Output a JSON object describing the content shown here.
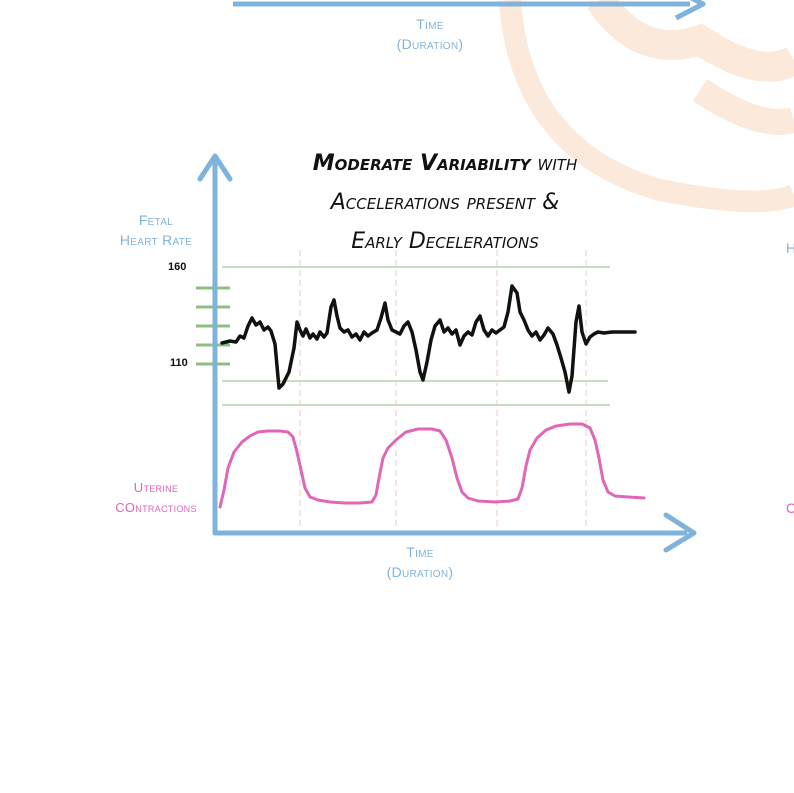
{
  "top_partial": {
    "x_label_line1": "Time",
    "x_label_line2": "(Duration)"
  },
  "main": {
    "title_bold": "Moderate Variability",
    "title_rest": " with",
    "title_line2": "Accelerations present &",
    "title_line3": "Early Decelerations",
    "y_label_line1": "Fetal",
    "y_label_line2": "Heart Rate",
    "y_tick_high": "160",
    "y_tick_low": "110",
    "x_label_line1": "Time",
    "x_label_line2": "(Duration)",
    "uc_label_line1": "Uterine",
    "uc_label_line2": "COntractions"
  },
  "right_edge": {
    "fragment_1": "H",
    "fragment_2": "C"
  },
  "colors": {
    "axis": "#7fb3db",
    "fhr_trace": "#111111",
    "uterine_trace": "#e066b8",
    "gridline": "#a6c99a",
    "decoration": "#fbe8d8"
  }
}
